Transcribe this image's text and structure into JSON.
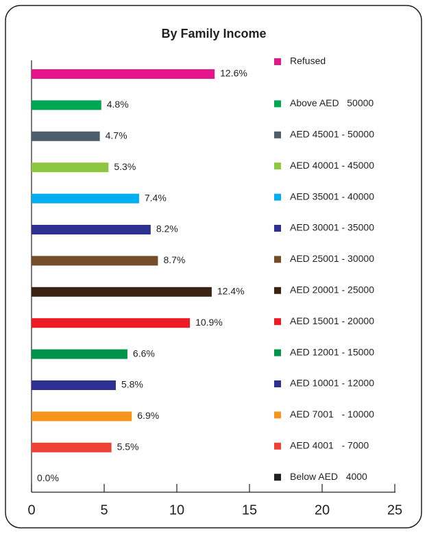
{
  "chart_data": {
    "type": "bar",
    "orientation": "horizontal",
    "title": "By Family Income",
    "categories": [
      "Refused",
      "Above AED   50000",
      "AED 45001 - 50000",
      "AED 40001 - 45000",
      "AED 35001 - 40000",
      "AED 30001 - 35000",
      "AED 25001 - 30000",
      "AED 20001 - 25000",
      "AED 15001 - 20000",
      "AED 12001 - 15000",
      "AED 10001 - 12000",
      "AED 7001   - 10000",
      "AED 4001   - 7000",
      "Below AED   4000"
    ],
    "values": [
      12.6,
      4.8,
      4.7,
      5.3,
      7.4,
      8.2,
      8.7,
      12.4,
      10.9,
      6.6,
      5.8,
      6.9,
      5.5,
      0.0
    ],
    "value_labels": [
      "12.6%",
      "4.8%",
      "4.7%",
      "5.3%",
      "7.4%",
      "8.2%",
      "8.7%",
      "12.4%",
      "10.9%",
      "6.6%",
      "5.8%",
      "6.9%",
      "5.5%",
      "0.0%"
    ],
    "colors": [
      "#e5168b",
      "#00a651",
      "#4d5d69",
      "#8dc63f",
      "#00aeef",
      "#2e3192",
      "#754c29",
      "#3b2314",
      "#ed1c24",
      "#00934a",
      "#2e3192",
      "#f7941d",
      "#ef4136",
      "#231f20"
    ],
    "xlim": [
      0,
      25
    ],
    "xticks": [
      0,
      5,
      10,
      15,
      20,
      25
    ],
    "legend": "right"
  }
}
